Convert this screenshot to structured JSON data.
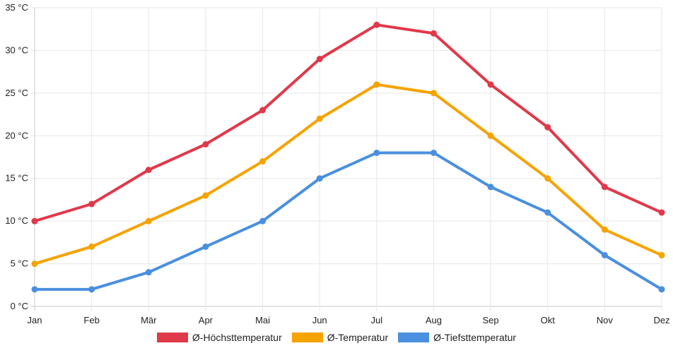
{
  "chart_data": {
    "type": "line",
    "categories": [
      "Jan",
      "Feb",
      "Mär",
      "Apr",
      "Mai",
      "Jun",
      "Jul",
      "Aug",
      "Sep",
      "Okt",
      "Nov",
      "Dez"
    ],
    "y_ticks": [
      "0 °C",
      "5 °C",
      "10 °C",
      "15 °C",
      "20 °C",
      "25 °C",
      "30 °C",
      "35 °C"
    ],
    "ylim": [
      0,
      35
    ],
    "grid": true,
    "legend_position": "bottom",
    "series": [
      {
        "name": "Ø-Höchsttemperatur",
        "color": "#e0394a",
        "values": [
          10,
          12,
          16,
          19,
          23,
          29,
          33,
          32,
          26,
          21,
          14,
          11
        ]
      },
      {
        "name": "Ø-Temperatur",
        "color": "#f5a300",
        "values": [
          5,
          7,
          10,
          13,
          17,
          22,
          26,
          25,
          20,
          15,
          9,
          6
        ]
      },
      {
        "name": "Ø-Tiefsttemperatur",
        "color": "#4a8fe0",
        "values": [
          2,
          2,
          4,
          7,
          10,
          15,
          18,
          18,
          14,
          11,
          6,
          2
        ]
      }
    ]
  }
}
